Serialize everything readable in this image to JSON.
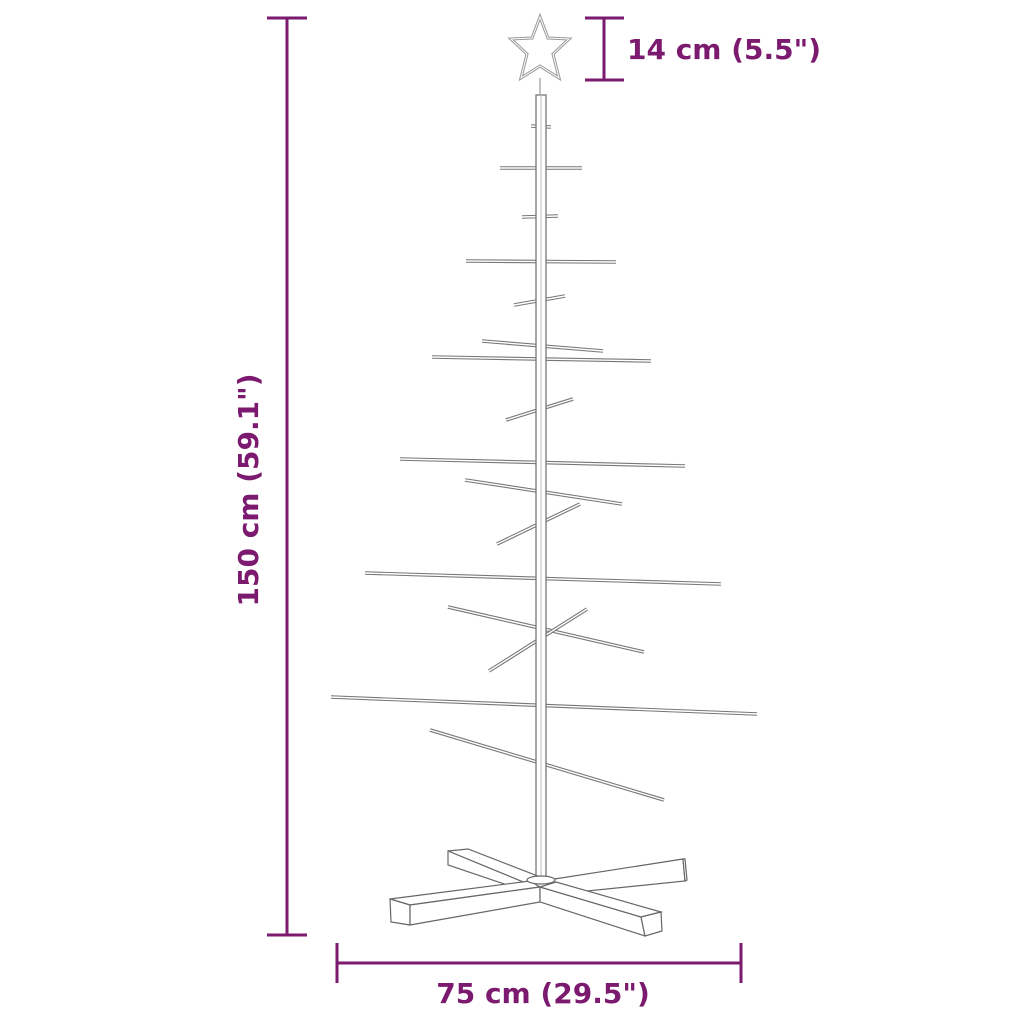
{
  "colors": {
    "dimension": "#7b1a6e",
    "outline": "#777777"
  },
  "dimensions": {
    "height_label": "150 cm (59.1\")",
    "width_label": "75 cm (29.5\")",
    "star_label": "14 cm (5.5\")"
  }
}
